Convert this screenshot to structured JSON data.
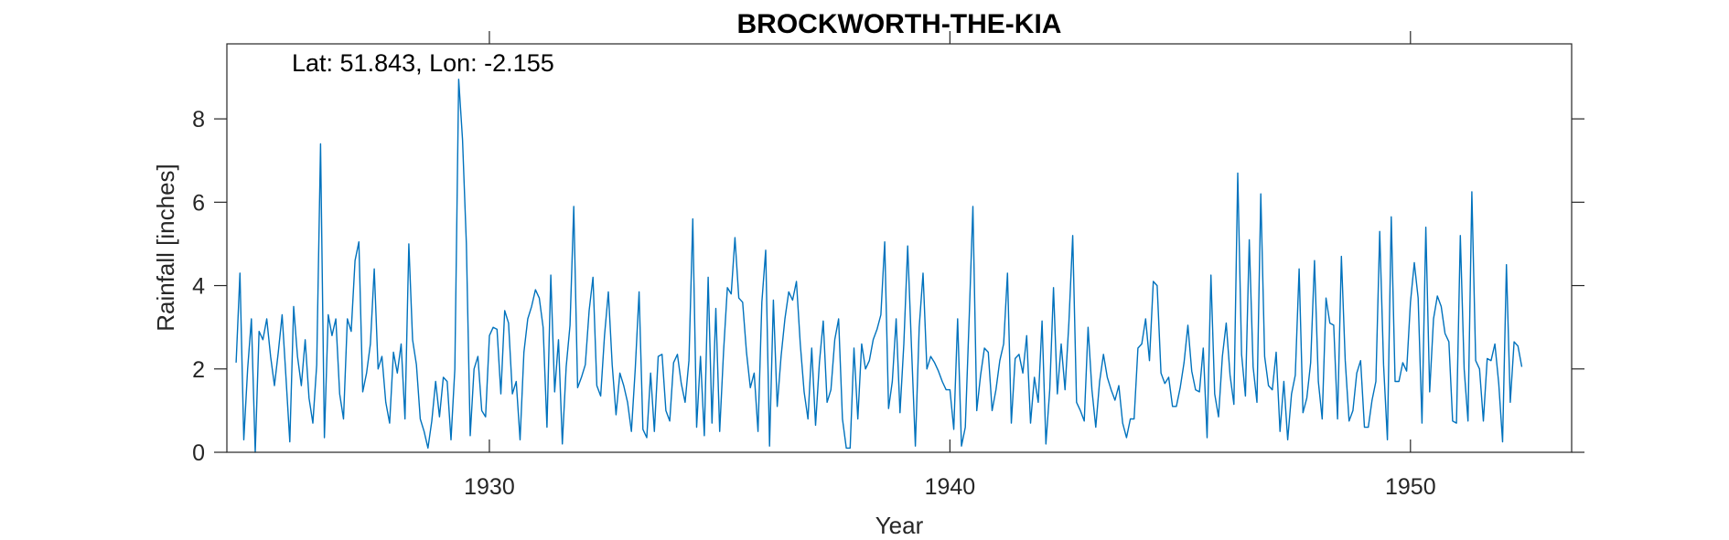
{
  "chart_data": {
    "type": "line",
    "title": "BROCKWORTH-THE-KIA",
    "xlabel": "Year",
    "ylabel": "Rainfall [inches]",
    "annotation": "Lat: 51.843, Lon: -2.155",
    "xlim": [
      1924.3,
      1953.5
    ],
    "ylim": [
      0,
      9.8
    ],
    "xticks": [
      1930,
      1940,
      1950
    ],
    "yticks": [
      0,
      2,
      4,
      6,
      8
    ],
    "grid": false,
    "line_color": "#0072BD",
    "series": [
      {
        "x_start": "1924-07",
        "interval": "monthly",
        "values": [
          2.15,
          4.3,
          0.3,
          2.0,
          3.2,
          0.0,
          2.9,
          2.7,
          3.2,
          2.3,
          1.6,
          2.4,
          3.3,
          1.8,
          0.25,
          3.5,
          2.3,
          1.6,
          2.7,
          1.3,
          0.7,
          2.1,
          7.4,
          0.35,
          3.3,
          2.8,
          3.2,
          1.4,
          0.8,
          3.2,
          2.9,
          4.6,
          5.05,
          1.45,
          1.9,
          2.6,
          4.4,
          2.0,
          2.3,
          1.2,
          0.7,
          2.4,
          1.9,
          2.6,
          0.8,
          5.0,
          2.7,
          2.1,
          0.8,
          0.5,
          0.1,
          0.75,
          1.7,
          0.85,
          1.8,
          1.7,
          0.3,
          2.0,
          8.95,
          7.5,
          5.0,
          0.4,
          2.0,
          2.3,
          1.0,
          0.85,
          2.8,
          3.0,
          2.95,
          1.4,
          3.4,
          3.1,
          1.4,
          1.7,
          0.3,
          2.4,
          3.2,
          3.5,
          3.9,
          3.7,
          3.0,
          0.6,
          4.25,
          1.45,
          2.7,
          0.2,
          2.05,
          3.05,
          5.9,
          1.55,
          1.8,
          2.1,
          3.4,
          4.2,
          1.6,
          1.35,
          2.8,
          3.85,
          2.1,
          0.9,
          1.9,
          1.6,
          1.2,
          0.5,
          2.0,
          3.85,
          0.55,
          0.35,
          1.9,
          0.5,
          2.3,
          2.35,
          1.0,
          0.75,
          2.15,
          2.35,
          1.65,
          1.2,
          2.2,
          5.6,
          0.6,
          2.3,
          0.4,
          4.2,
          0.7,
          3.45,
          0.5,
          2.4,
          3.95,
          3.8,
          5.15,
          3.7,
          3.6,
          2.4,
          1.55,
          1.9,
          0.5,
          3.6,
          4.85,
          0.15,
          3.65,
          1.1,
          2.3,
          3.2,
          3.85,
          3.65,
          4.1,
          2.6,
          1.45,
          0.8,
          2.5,
          0.65,
          2.15,
          3.15,
          1.2,
          1.5,
          2.7,
          3.2,
          0.8,
          0.1,
          0.1,
          2.5,
          0.8,
          2.6,
          2.0,
          2.2,
          2.7,
          2.95,
          3.3,
          5.05,
          1.05,
          1.7,
          3.2,
          0.95,
          2.6,
          4.95,
          2.5,
          0.15,
          3.0,
          4.3,
          2.0,
          2.3,
          2.15,
          1.95,
          1.7,
          1.5,
          1.5,
          0.55,
          3.2,
          0.15,
          0.6,
          3.2,
          5.9,
          1.0,
          1.85,
          2.5,
          2.4,
          1.0,
          1.5,
          2.2,
          2.6,
          4.3,
          0.7,
          2.25,
          2.35,
          1.9,
          2.8,
          0.7,
          1.8,
          1.2,
          3.15,
          0.2,
          1.5,
          3.95,
          1.4,
          2.6,
          1.5,
          3.1,
          5.2,
          1.2,
          1.0,
          0.75,
          3.0,
          1.5,
          0.6,
          1.7,
          2.35,
          1.8,
          1.5,
          1.25,
          1.6,
          0.7,
          0.35,
          0.8,
          0.8,
          2.5,
          2.6,
          3.2,
          2.2,
          4.1,
          4.0,
          1.9,
          1.65,
          1.8,
          1.1,
          1.1,
          1.55,
          2.15,
          3.05,
          1.95,
          1.5,
          1.45,
          2.5,
          0.35,
          4.25,
          1.4,
          0.85,
          2.3,
          3.1,
          1.85,
          1.15,
          6.7,
          2.35,
          1.35,
          5.1,
          2.05,
          1.2,
          6.2,
          2.3,
          1.6,
          1.5,
          2.4,
          0.5,
          1.7,
          0.3,
          1.4,
          1.85,
          4.4,
          0.95,
          1.3,
          2.15,
          4.6,
          1.7,
          0.8,
          3.7,
          3.1,
          3.05,
          0.8,
          4.7,
          2.2,
          0.75,
          1.0,
          1.9,
          2.2,
          0.6,
          0.6,
          1.25,
          1.7,
          5.3,
          2.1,
          0.3,
          5.65,
          1.7,
          1.7,
          2.15,
          1.95,
          3.6,
          4.55,
          3.7,
          0.7,
          5.4,
          1.45,
          3.2,
          3.75,
          3.5,
          2.85,
          2.65,
          0.75,
          0.7,
          5.2,
          2.0,
          0.75,
          6.25,
          2.2,
          2.0,
          0.75,
          2.25,
          2.2,
          2.6,
          1.65,
          0.25,
          4.5,
          1.2,
          2.65,
          2.55,
          2.05
        ]
      }
    ]
  }
}
